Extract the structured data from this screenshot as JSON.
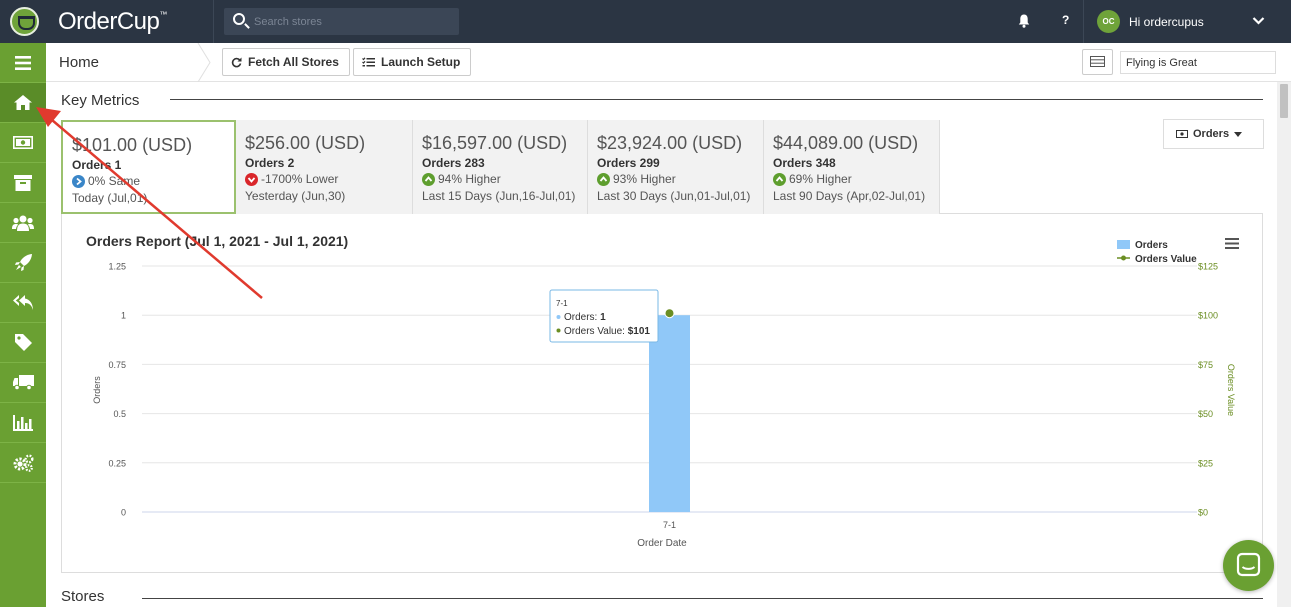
{
  "brand": {
    "name": "OrderCup",
    "tm": "™"
  },
  "search": {
    "placeholder": "Search stores"
  },
  "user": {
    "initials": "OC",
    "greeting": "Hi ordercupus"
  },
  "header": {
    "help_label": "?"
  },
  "sidebar": {
    "items": [
      {
        "name": "menu",
        "icon": "hamburger-icon"
      },
      {
        "name": "home",
        "icon": "home-icon",
        "active": true
      },
      {
        "name": "payments",
        "icon": "money-icon"
      },
      {
        "name": "archive",
        "icon": "archive-icon"
      },
      {
        "name": "users",
        "icon": "users-icon"
      },
      {
        "name": "launch",
        "icon": "rocket-icon"
      },
      {
        "name": "returns",
        "icon": "reply-all-icon"
      },
      {
        "name": "tags",
        "icon": "tag-icon"
      },
      {
        "name": "shipping",
        "icon": "truck-icon"
      },
      {
        "name": "reports",
        "icon": "bar-chart-icon"
      },
      {
        "name": "settings",
        "icon": "gears-icon"
      }
    ]
  },
  "subheader": {
    "title": "Home",
    "fetch_label": "Fetch All Stores",
    "setup_label": "Launch Setup",
    "motto_value": "Flying is Great"
  },
  "key_metrics": {
    "title": "Key Metrics",
    "dropdown_label": "Orders",
    "cards": [
      {
        "amount": "$101.00 (USD)",
        "count": "Orders 1",
        "trend": "0% Same",
        "trend_type": "same",
        "period": "Today (Jul,01)"
      },
      {
        "amount": "$256.00 (USD)",
        "count": "Orders 2",
        "trend": "-1700% Lower",
        "trend_type": "down",
        "period": "Yesterday (Jun,30)"
      },
      {
        "amount": "$16,597.00 (USD)",
        "count": "Orders 283",
        "trend": "94% Higher",
        "trend_type": "up",
        "period": "Last 15 Days (Jun,16-Jul,01)"
      },
      {
        "amount": "$23,924.00 (USD)",
        "count": "Orders 299",
        "trend": "93% Higher",
        "trend_type": "up",
        "period": "Last 30 Days (Jun,01-Jul,01)"
      },
      {
        "amount": "$44,089.00 (USD)",
        "count": "Orders 348",
        "trend": "69% Higher",
        "trend_type": "up",
        "period": "Last 90 Days (Apr,02-Jul,01)"
      }
    ]
  },
  "stores": {
    "title": "Stores"
  },
  "colors": {
    "bar": "#90c8f8",
    "line": "#6b8e23",
    "sidebar": "#6aa032",
    "topbar": "#2b3543"
  },
  "chart_data": {
    "type": "bar",
    "title": "Orders Report (Jul 1, 2021 - Jul 1, 2021)",
    "xlabel": "Order Date",
    "ylabel": "Orders",
    "y2label": "Orders Value",
    "categories": [
      "7-1"
    ],
    "series": [
      {
        "name": "Orders",
        "type": "bar",
        "axis": "left",
        "values": [
          1
        ]
      },
      {
        "name": "Orders Value",
        "type": "line",
        "axis": "right",
        "values": [
          101
        ]
      }
    ],
    "ylim": [
      0,
      1.25
    ],
    "yticks": [
      "0",
      "0.25",
      "0.5",
      "0.75",
      "1",
      "1.25"
    ],
    "y2lim": [
      0,
      125
    ],
    "y2ticks": [
      "$0",
      "$25",
      "$50",
      "$75",
      "$100",
      "$125"
    ],
    "grid": true,
    "legend": "top-right",
    "tooltip": {
      "header": "7-1",
      "orders_label": "Orders: ",
      "orders_value": "1",
      "value_label": "Orders Value: ",
      "value_value": "$101"
    }
  }
}
